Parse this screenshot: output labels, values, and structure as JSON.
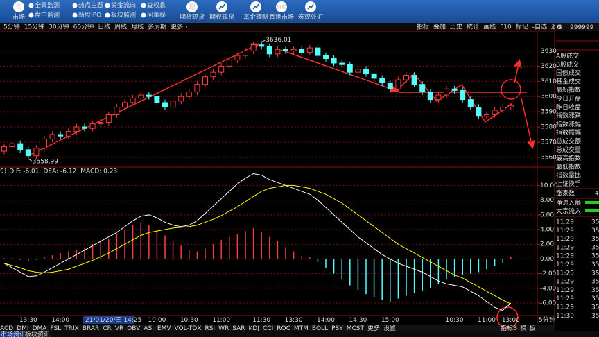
{
  "toolbar": {
    "main": {
      "icon": "市",
      "label": "市场"
    },
    "small": [
      [
        "全景监测",
        "盘中监测"
      ],
      [
        "热点主题",
        "新股IPO"
      ],
      [
        "资金流向",
        "板块监测"
      ],
      [
        "查权息",
        "问董秘"
      ]
    ],
    "big": [
      {
        "icon": "期",
        "label": "期货现货"
      },
      {
        "label": "期权现货"
      },
      {
        "label": "基金理财"
      },
      {
        "icon": "HK",
        "label": "香港市场"
      },
      {
        "label": "宏观外汇"
      }
    ]
  },
  "periods": [
    "5分钟",
    "15分钟",
    "30分钟",
    "60分钟",
    "日线",
    "周线",
    "月线",
    "多周期",
    "更多 ›"
  ],
  "tools": [
    "指标",
    "叠加",
    "历史",
    "统计",
    "画线",
    "F10",
    "标记",
    "-自选",
    "返回"
  ],
  "side_panel": {
    "prefix": "G",
    "code": "999999",
    "items": [
      "A股成交",
      "B股成交",
      "国债成交",
      "基金成交",
      "最新指数",
      "今日开盘",
      "昨日收盘",
      "指数涨跌",
      "指数涨幅",
      "指数振幅",
      "总成交额",
      "总成交量",
      "最高指数",
      "最低指数",
      "指数量比",
      "上证换手"
    ],
    "rise_count": {
      "label": "涨家数",
      "value": 4
    },
    "flows": [
      "净流入额",
      "大宗流入"
    ],
    "ticks": {
      "times": [
        "11:29",
        "11:29",
        "11:29",
        "11:29",
        "11:29",
        "11:29",
        "11:29",
        "11:29",
        "11:29",
        "11:29",
        "11:29",
        "11:30"
      ],
      "values": [
        35,
        35,
        35,
        35,
        35,
        35,
        35,
        35,
        35,
        35,
        35,
        35
      ]
    }
  },
  "chart_data": [
    {
      "type": "candlestick",
      "categories": [
        null,
        null,
        null,
        "13:30",
        null,
        null,
        null,
        "14:00",
        null,
        null,
        null,
        null,
        null,
        null,
        null,
        null,
        null,
        null,
        null,
        "10:00",
        null,
        null,
        null,
        "10:30",
        null,
        null,
        null,
        "11:00",
        null,
        null,
        null,
        null,
        "11:30",
        null,
        null,
        null,
        "13:30",
        null,
        null,
        null,
        "14:00",
        null,
        null,
        null,
        "14:30",
        null,
        null,
        null,
        "15:00",
        null,
        null,
        null,
        null,
        null,
        null,
        null,
        "10:30",
        null,
        null,
        null,
        "11:00",
        null,
        null,
        "13:00"
      ],
      "open": [
        3564,
        3567,
        3569,
        3565,
        3561,
        3566,
        3572,
        3575,
        3574,
        3577,
        3580,
        3579,
        3582,
        3583,
        3588,
        3593,
        3596,
        3599,
        3601,
        3600,
        3596,
        3593,
        3597,
        3600,
        3603,
        3608,
        3613,
        3616,
        3620,
        3624,
        3627,
        3630,
        3634,
        3633,
        3628,
        3631,
        3630,
        3631,
        3629,
        3632,
        3627,
        3625,
        3622,
        3621,
        3616,
        3618,
        3615,
        3612,
        3609,
        3605,
        3611,
        3614,
        3608,
        3603,
        3598,
        3601,
        3605,
        3604,
        3598,
        3593,
        3587,
        3588,
        3591,
        3593
      ],
      "high": [
        3569,
        3571,
        3571,
        3567,
        3568,
        3574,
        3577,
        3577,
        3579,
        3582,
        3582,
        3584,
        3585,
        3590,
        3595,
        3598,
        3601,
        3603,
        3603,
        3602,
        3598,
        3599,
        3602,
        3605,
        3610,
        3615,
        3618,
        3622,
        3626,
        3629,
        3632,
        3636,
        3636.01,
        3635,
        3633,
        3633,
        3633,
        3633,
        3634,
        3634,
        3629,
        3627,
        3624,
        3623,
        3620,
        3620,
        3617,
        3614,
        3611,
        3613,
        3616,
        3616,
        3610,
        3605,
        3603,
        3607,
        3607,
        3606,
        3600,
        3595,
        3590,
        3593,
        3595,
        3596
      ],
      "low": [
        3562,
        3565,
        3563,
        3558.99,
        3559,
        3564,
        3570,
        3572,
        3572,
        3575,
        3577,
        3577,
        3580,
        3581,
        3586,
        3591,
        3594,
        3597,
        3598,
        3594,
        3591,
        3591,
        3595,
        3598,
        3601,
        3606,
        3611,
        3614,
        3618,
        3622,
        3625,
        3628,
        3631,
        3626,
        3626,
        3628,
        3628,
        3627,
        3627,
        3625,
        3623,
        3620,
        3619,
        3614,
        3614,
        3613,
        3610,
        3607,
        3603,
        3603,
        3609,
        3606,
        3601,
        3596,
        3596,
        3599,
        3602,
        3596,
        3591,
        3585,
        3585,
        3586,
        3589,
        3591
      ],
      "close": [
        3567,
        3569,
        3565,
        3561,
        3566,
        3572,
        3575,
        3574,
        3577,
        3580,
        3579,
        3582,
        3583,
        3588,
        3593,
        3596,
        3599,
        3601,
        3600,
        3596,
        3593,
        3597,
        3600,
        3603,
        3608,
        3613,
        3616,
        3620,
        3624,
        3627,
        3630,
        3634,
        3633,
        3628,
        3631,
        3630,
        3631,
        3629,
        3632,
        3627,
        3625,
        3622,
        3621,
        3616,
        3618,
        3615,
        3612,
        3609,
        3605,
        3611,
        3614,
        3608,
        3603,
        3598,
        3601,
        3605,
        3604,
        3598,
        3593,
        3587,
        3588,
        3591,
        3593,
        3594
      ],
      "ylim": [
        3554,
        3643
      ],
      "yticks": [
        3560,
        3570,
        3580,
        3590,
        3600,
        3610,
        3620,
        3630
      ],
      "grid": true,
      "up_color": "#ff3c3c",
      "down_color": "#54fcfc",
      "cursor_label": "21/01/20/三 14:25",
      "period_label": "5分钟"
    },
    {
      "type": "macd",
      "header": "9)",
      "series": [
        {
          "label": "DIF: -6.01",
          "color": "#ffffff",
          "values": [
            -0.6,
            -1.2,
            -1.8,
            -2.4,
            -2.3,
            -1.8,
            -1.2,
            -0.6,
            0.0,
            0.6,
            1.2,
            1.8,
            2.4,
            3.0,
            3.6,
            4.4,
            5.2,
            5.8,
            6.0,
            5.6,
            5.0,
            4.6,
            4.4,
            4.6,
            5.2,
            6.2,
            7.2,
            8.2,
            9.2,
            10.2,
            11.0,
            11.6,
            11.4,
            10.8,
            10.4,
            10.0,
            9.6,
            9.2,
            8.8,
            8.0,
            7.0,
            6.0,
            5.0,
            4.0,
            3.0,
            2.2,
            1.4,
            0.6,
            0.0,
            -0.6,
            -1.0,
            -1.4,
            -1.8,
            -2.4,
            -3.0,
            -3.4,
            -3.6,
            -3.8,
            -4.4,
            -5.0,
            -5.8,
            -6.6,
            -7.0,
            -6.01
          ]
        },
        {
          "label": "DEA: -6.12",
          "color": "#ffff00",
          "values": [
            -0.6,
            -0.9,
            -1.2,
            -1.6,
            -1.8,
            -1.9,
            -1.8,
            -1.6,
            -1.4,
            -1.0,
            -0.6,
            -0.2,
            0.3,
            0.8,
            1.4,
            2.0,
            2.6,
            3.2,
            3.6,
            3.8,
            4.0,
            4.2,
            4.3,
            4.4,
            4.6,
            5.0,
            5.4,
            5.9,
            6.5,
            7.1,
            7.8,
            8.5,
            9.2,
            9.6,
            9.8,
            10.0,
            10.0,
            9.8,
            9.6,
            9.2,
            8.8,
            8.2,
            7.6,
            6.8,
            6.0,
            5.2,
            4.4,
            3.6,
            2.8,
            2.0,
            1.4,
            0.8,
            0.2,
            -0.4,
            -1.0,
            -1.6,
            -2.2,
            -2.6,
            -3.2,
            -3.8,
            -4.4,
            -5.0,
            -5.6,
            -6.12
          ]
        },
        {
          "label": "MACD: 0.23",
          "color": "#ff00ff",
          "bars": true,
          "up_color": "#ff3c3c",
          "down_color": "#54fcfc",
          "values": [
            0.1,
            0.1,
            -0.1,
            -0.2,
            -0.1,
            0.2,
            0.5,
            0.8,
            1.0,
            1.3,
            1.6,
            2.0,
            2.4,
            2.8,
            3.4,
            4.0,
            4.6,
            5.0,
            4.6,
            4.0,
            3.2,
            2.4,
            1.8,
            1.2,
            1.0,
            1.4,
            2.0,
            2.6,
            3.0,
            3.4,
            3.8,
            4.2,
            3.6,
            3.0,
            2.4,
            1.6,
            1.0,
            0.4,
            0.2,
            -0.4,
            -1.2,
            -2.0,
            -2.8,
            -3.6,
            -4.2,
            -4.8,
            -5.2,
            -5.6,
            -5.8,
            -5.4,
            -5.0,
            -4.6,
            -4.4,
            -4.0,
            -3.4,
            -2.8,
            -2.4,
            -2.2,
            -2.0,
            -1.8,
            -1.4,
            -1.0,
            -0.6,
            0.23
          ]
        }
      ],
      "ylim": [
        -7.7,
        12.4
      ],
      "yticks": [
        {
          "value": 10,
          "label": "10.00"
        },
        {
          "value": 8,
          "label": "8.00"
        },
        {
          "value": 6,
          "label": "6.00"
        },
        {
          "value": 4,
          "label": "4.00"
        },
        {
          "value": 2,
          "label": "2.00"
        },
        {
          "value": 0,
          "label": "0.00"
        },
        {
          "value": -2,
          "label": "-2.00"
        },
        {
          "value": -4,
          "label": "-4.00"
        },
        {
          "value": -6,
          "label": "-6.00"
        }
      ],
      "grid": true
    }
  ],
  "indicator_tabs": [
    "ACD",
    "DMI",
    "DMA",
    "FSL",
    "TRIX",
    "BRAR",
    "CR",
    "VR",
    "OBV",
    "ASI",
    "EMV",
    "VOL-TDX",
    "RSI",
    "WR",
    "SAR",
    "KDJ",
    "CCI",
    "ROC",
    "MTM",
    "BOLL",
    "PSY",
    "MCST",
    "更多",
    "设置"
  ],
  "template_tabs": [
    "指标B",
    "模",
    "板"
  ],
  "news_tabs": [
    "市场资讯",
    "板块资讯"
  ]
}
